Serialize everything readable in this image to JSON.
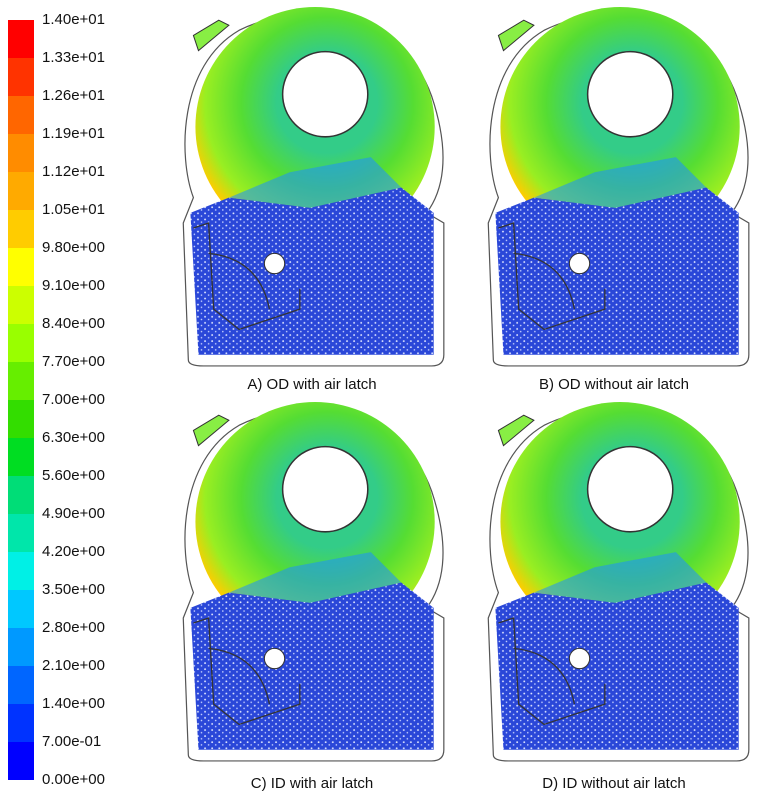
{
  "colorbar": {
    "labels": [
      "1.40e+01",
      "1.33e+01",
      "1.26e+01",
      "1.19e+01",
      "1.12e+01",
      "1.05e+01",
      "9.80e+00",
      "9.10e+00",
      "8.40e+00",
      "7.70e+00",
      "7.00e+00",
      "6.30e+00",
      "5.60e+00",
      "4.90e+00",
      "4.20e+00",
      "3.50e+00",
      "2.80e+00",
      "2.10e+00",
      "1.40e+00",
      "7.00e-01",
      "0.00e+00"
    ]
  },
  "panels": [
    {
      "caption": "A) OD with air latch"
    },
    {
      "caption": "B) OD without air latch"
    },
    {
      "caption": "C) ID with air latch"
    },
    {
      "caption": "D) ID without air latch"
    }
  ]
}
